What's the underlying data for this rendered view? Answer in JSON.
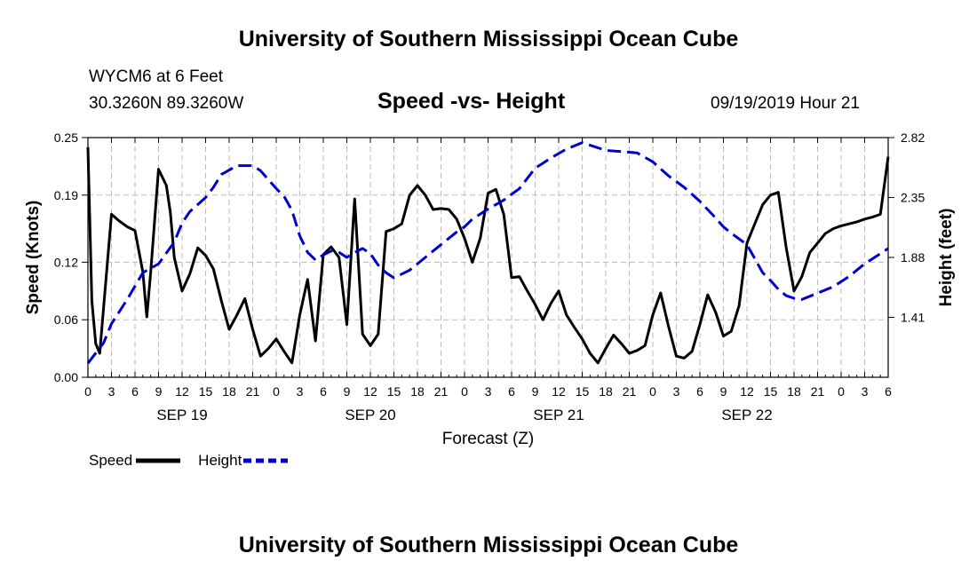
{
  "header": {
    "top_title": "University of Southern Mississippi Ocean Cube",
    "bottom_title": "University of Southern Mississippi Ocean Cube",
    "station": "WYCM6 at 6 Feet",
    "coords": "30.3260N 89.3260W",
    "chart_title": "Speed -vs- Height",
    "date_hour": "09/19/2019 Hour 21"
  },
  "chart_data": {
    "type": "line",
    "title": "Speed -vs- Height",
    "xlabel": "Forecast (Z)",
    "ylabel": "Speed (Knots)",
    "y2label": "Height (feet)",
    "x_unit": "hours from 00Z SEP 19",
    "xlim": [
      -3,
      99
    ],
    "ylim": [
      0,
      0.25
    ],
    "y2lim": [
      0.94,
      2.82
    ],
    "x_ticks": [
      -3,
      0,
      3,
      6,
      9,
      12,
      15,
      18,
      21,
      24,
      27,
      30,
      33,
      36,
      39,
      42,
      45,
      48,
      51,
      54,
      57,
      60,
      63,
      66,
      69,
      72,
      75,
      78,
      81,
      84,
      87,
      90,
      93,
      96,
      99
    ],
    "x_tick_labels": [
      "0",
      "3",
      "6",
      "9",
      "12",
      "15",
      "18",
      "21",
      "0",
      "3",
      "6",
      "9",
      "12",
      "15",
      "18",
      "21",
      "0",
      "3",
      "6",
      "9",
      "12",
      "15",
      "18",
      "21",
      "0",
      "3",
      "6",
      "9",
      "12",
      "15",
      "18",
      "21",
      "0",
      "3",
      "6"
    ],
    "date_labels": [
      {
        "label": "SEP 19",
        "x": 9
      },
      {
        "label": "SEP 20",
        "x": 33
      },
      {
        "label": "SEP 21",
        "x": 57
      },
      {
        "label": "SEP 22",
        "x": 81
      }
    ],
    "y_ticks": [
      0,
      0.06,
      0.12,
      0.19,
      0.25
    ],
    "y_tick_labels": [
      "0.00",
      "0.06",
      "0.12",
      "0.19",
      "0.25"
    ],
    "y2_ticks": [
      1.41,
      1.88,
      2.35,
      2.82
    ],
    "y2_tick_labels": [
      "1.41",
      "1.88",
      "2.35",
      "2.82"
    ],
    "grid": true,
    "legend_position": "bottom-left",
    "series": [
      {
        "name": "Speed",
        "axis": "left",
        "color": "#000000",
        "dash": "solid",
        "x": [
          -3,
          -2.5,
          -2,
          -1.5,
          0,
          1,
          2,
          3,
          4,
          4.5,
          5,
          6,
          7,
          7.5,
          8,
          9,
          10,
          11,
          12,
          13,
          14,
          15,
          16,
          17,
          18,
          19,
          20,
          21,
          22,
          23,
          24,
          25,
          26,
          27,
          28,
          29,
          30,
          31,
          32,
          33,
          34,
          35,
          36,
          37,
          38,
          39,
          40,
          41,
          42,
          43,
          44,
          45,
          46,
          47,
          48,
          49,
          50,
          51,
          52,
          53,
          54,
          55,
          56,
          57,
          58,
          59,
          60,
          61,
          62,
          63,
          64,
          65,
          66,
          67,
          68,
          69,
          70,
          71,
          72,
          73,
          74,
          75,
          76,
          77,
          78,
          79,
          80,
          81,
          82,
          83,
          84,
          85,
          86,
          87,
          88,
          89,
          90,
          91,
          92,
          93,
          94,
          95,
          96,
          97,
          98,
          99
        ],
        "values": [
          0.24,
          0.08,
          0.035,
          0.025,
          0.17,
          0.163,
          0.157,
          0.153,
          0.11,
          0.063,
          0.11,
          0.217,
          0.2,
          0.172,
          0.125,
          0.09,
          0.108,
          0.135,
          0.127,
          0.113,
          0.08,
          0.05,
          0.065,
          0.082,
          0.05,
          0.022,
          0.03,
          0.04,
          0.027,
          0.015,
          0.065,
          0.102,
          0.038,
          0.128,
          0.136,
          0.125,
          0.055,
          0.186,
          0.045,
          0.033,
          0.045,
          0.152,
          0.155,
          0.16,
          0.19,
          0.2,
          0.19,
          0.175,
          0.176,
          0.175,
          0.165,
          0.145,
          0.12,
          0.145,
          0.192,
          0.196,
          0.17,
          0.104,
          0.105,
          0.09,
          0.076,
          0.06,
          0.077,
          0.09,
          0.065,
          0.052,
          0.04,
          0.025,
          0.015,
          0.03,
          0.044,
          0.035,
          0.025,
          0.028,
          0.033,
          0.065,
          0.088,
          0.053,
          0.022,
          0.02,
          0.027,
          0.055,
          0.086,
          0.068,
          0.043,
          0.048,
          0.075,
          0.14,
          0.16,
          0.18,
          0.19,
          0.193,
          0.135,
          0.09,
          0.105,
          0.13,
          0.14,
          0.15,
          0.155,
          0.158,
          0.16,
          0.162,
          0.165,
          0.167,
          0.17,
          0.23
        ]
      },
      {
        "name": "Height",
        "axis": "right",
        "color": "#0000cc",
        "dash": "dashed",
        "x": [
          -3,
          -1,
          0,
          2,
          4,
          6,
          8,
          9,
          10,
          12,
          13,
          14,
          16,
          18,
          19,
          21,
          22,
          23,
          24,
          25,
          26,
          27,
          28,
          29,
          30,
          31,
          32,
          33,
          34,
          35,
          36,
          38,
          40,
          42,
          44,
          45,
          46,
          48,
          50,
          52,
          54,
          56,
          58,
          60,
          61,
          63,
          65,
          67,
          69,
          71,
          73,
          75,
          77,
          78,
          79,
          81,
          83,
          84,
          85,
          86,
          87,
          88,
          90,
          92,
          94,
          96,
          98,
          99
        ],
        "values": [
          1.05,
          1.21,
          1.36,
          1.55,
          1.76,
          1.83,
          2.0,
          2.15,
          2.24,
          2.35,
          2.43,
          2.53,
          2.6,
          2.6,
          2.56,
          2.42,
          2.36,
          2.25,
          2.05,
          1.92,
          1.86,
          1.9,
          1.93,
          1.92,
          1.88,
          1.92,
          1.95,
          1.91,
          1.82,
          1.76,
          1.72,
          1.78,
          1.88,
          1.98,
          2.08,
          2.12,
          2.18,
          2.26,
          2.33,
          2.42,
          2.58,
          2.66,
          2.73,
          2.78,
          2.76,
          2.72,
          2.71,
          2.7,
          2.63,
          2.52,
          2.43,
          2.32,
          2.19,
          2.12,
          2.07,
          1.98,
          1.76,
          1.7,
          1.63,
          1.58,
          1.56,
          1.55,
          1.6,
          1.65,
          1.73,
          1.83,
          1.91,
          1.95
        ]
      }
    ]
  },
  "legend": {
    "speed_label": "Speed",
    "height_label": "Height"
  }
}
